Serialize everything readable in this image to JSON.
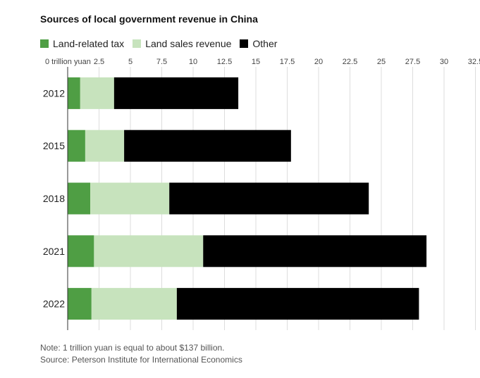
{
  "chart_data": {
    "type": "bar",
    "orientation": "horizontal",
    "stacked": true,
    "title": "Sources of local government revenue in China",
    "categories": [
      "2012",
      "2015",
      "2018",
      "2021",
      "2022"
    ],
    "series": [
      {
        "name": "Land-related tax",
        "color": "#4f9e44",
        "values": [
          1.0,
          1.4,
          1.8,
          2.1,
          1.9
        ]
      },
      {
        "name": "Land sales revenue",
        "color": "#c7e3bd",
        "values": [
          2.7,
          3.1,
          6.3,
          8.7,
          6.8
        ]
      },
      {
        "name": "Other",
        "color": "#000000",
        "values": [
          9.9,
          13.3,
          15.9,
          17.8,
          19.3
        ]
      }
    ],
    "x_ticks": [
      {
        "value": 0,
        "label": "0 trillion yuan"
      },
      {
        "value": 2.5,
        "label": "2.5"
      },
      {
        "value": 5,
        "label": "5"
      },
      {
        "value": 7.5,
        "label": "7.5"
      },
      {
        "value": 10,
        "label": "10"
      },
      {
        "value": 12.5,
        "label": "12.5"
      },
      {
        "value": 15,
        "label": "15"
      },
      {
        "value": 17.5,
        "label": "17.5"
      },
      {
        "value": 20,
        "label": "20"
      },
      {
        "value": 22.5,
        "label": "22.5"
      },
      {
        "value": 25,
        "label": "25"
      },
      {
        "value": 27.5,
        "label": "27.5"
      },
      {
        "value": 30,
        "label": "30"
      },
      {
        "value": 32.5,
        "label": "32.5"
      }
    ],
    "xlim": [
      0,
      32.5
    ],
    "grid": true,
    "legend_position": "top-left"
  },
  "footer": {
    "note": "Note: 1 trillion yuan is equal to about $137 billion.",
    "source": "Source: Peterson Institute for International Economics"
  }
}
